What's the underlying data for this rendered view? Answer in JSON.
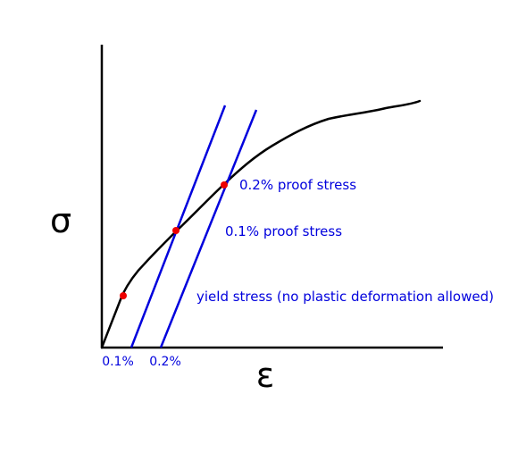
{
  "diagram": {
    "axes": {
      "y_symbol": "σ",
      "x_symbol": "ε"
    },
    "tick_labels": {
      "offset_0_1": "0.1%",
      "offset_0_2": "0.2%"
    },
    "annotations": {
      "proof_0_2": "0.2% proof stress",
      "proof_0_1": "0.1% proof stress",
      "yield": "yield stress (no plastic deformation allowed)"
    },
    "colors": {
      "curve": "#000000",
      "axes": "#000000",
      "offset_lines": "#0000dd",
      "annotation_text": "#0000dd",
      "points": "#ee0000"
    }
  }
}
